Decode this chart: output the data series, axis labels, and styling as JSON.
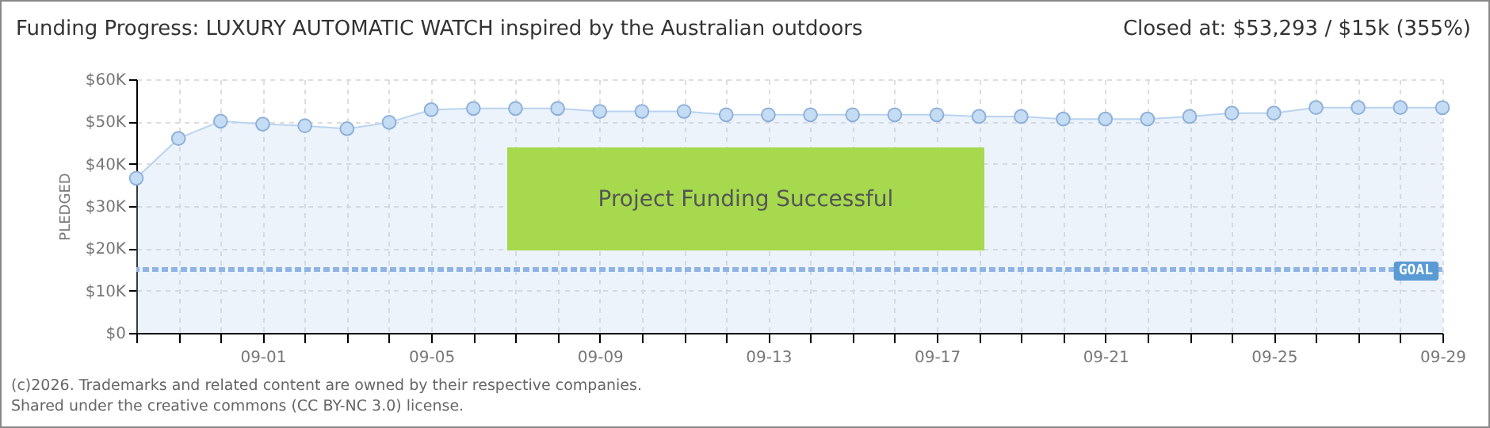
{
  "chart_data": {
    "type": "area",
    "title": "Funding Progress: LUXURY AUTOMATIC WATCH inspired by the Australian outdoors",
    "subtitle": "Closed at:  $53,293 / $15k (355%)",
    "ylabel": "PLEDGED",
    "x": [
      "--08-29",
      "--08-30",
      "--08-31",
      "--09-01",
      "--09-02",
      "--09-03",
      "--09-04",
      "--09-05",
      "--09-06",
      "--09-07",
      "--09-08",
      "--09-09",
      "--09-10",
      "--09-11",
      "--09-12",
      "--09-13",
      "--09-14",
      "--09-15",
      "--09-16",
      "--09-17",
      "--09-18",
      "--09-19",
      "--09-20",
      "--09-21",
      "--09-22",
      "--09-23",
      "--09-24",
      "--09-25",
      "--09-26",
      "--09-27",
      "--09-28",
      "--09-29"
    ],
    "series": [
      {
        "color": "#b9d3f0",
        "values": [
          36600,
          46000,
          50100,
          49400,
          49000,
          48300,
          49800,
          52800,
          53100,
          53100,
          53100,
          52400,
          52400,
          52400,
          51600,
          51600,
          51600,
          51600,
          51600,
          51600,
          51200,
          51200,
          50600,
          50600,
          50600,
          51200,
          52000,
          52000,
          53300,
          53300,
          53300,
          53293
        ]
      }
    ],
    "xlim": [
      "--08-29",
      "--09-29"
    ],
    "xticks": [
      {
        "value": "--08-29",
        "label": null
      },
      {
        "value": "--08-30",
        "label": null
      },
      {
        "value": "--08-31",
        "label": null
      },
      {
        "value": "--09-01",
        "label": "09-01"
      },
      {
        "value": "--09-02",
        "label": null
      },
      {
        "value": "--09-03",
        "label": null
      },
      {
        "value": "--09-04",
        "label": null
      },
      {
        "value": "--09-05",
        "label": "09-05"
      },
      {
        "value": "--09-06",
        "label": null
      },
      {
        "value": "--09-07",
        "label": null
      },
      {
        "value": "--09-08",
        "label": null
      },
      {
        "value": "--09-09",
        "label": "09-09"
      },
      {
        "value": "--09-10",
        "label": null
      },
      {
        "value": "--09-11",
        "label": null
      },
      {
        "value": "--09-12",
        "label": null
      },
      {
        "value": "--09-13",
        "label": "09-13"
      },
      {
        "value": "--09-14",
        "label": null
      },
      {
        "value": "--09-15",
        "label": null
      },
      {
        "value": "--09-16",
        "label": null
      },
      {
        "value": "--09-17",
        "label": "09-17"
      },
      {
        "value": "--09-18",
        "label": null
      },
      {
        "value": "--09-19",
        "label": null
      },
      {
        "value": "--09-20",
        "label": null
      },
      {
        "value": "--09-21",
        "label": "09-21"
      },
      {
        "value": "--09-22",
        "label": null
      },
      {
        "value": "--09-23",
        "label": null
      },
      {
        "value": "--09-24",
        "label": null
      },
      {
        "value": "--09-25",
        "label": "09-25"
      },
      {
        "value": "--09-26",
        "label": null
      },
      {
        "value": "--09-27",
        "label": null
      },
      {
        "value": "--09-28",
        "label": null
      },
      {
        "value": "--09-29",
        "label": "09-29"
      }
    ],
    "ylim": [
      0,
      60000
    ],
    "yticks": [
      {
        "value": 0,
        "label": "$0"
      },
      {
        "value": 10000,
        "label": "$10K"
      },
      {
        "value": 20000,
        "label": "$20K"
      },
      {
        "value": 30000,
        "label": "$30K"
      },
      {
        "value": 40000,
        "label": "$40K"
      },
      {
        "value": 50000,
        "label": "$50K"
      },
      {
        "value": 60000,
        "label": "$60K"
      }
    ],
    "ref_lines": [
      {
        "axis": "y",
        "value": 15000,
        "label": "GOAL",
        "color": "#8fb4e3",
        "line_style": "dashed"
      }
    ],
    "grid": true,
    "marker": "circle",
    "annotations": [
      "Project Funding Successful",
      "(c)2026. Trademarks and related content are owned by their respective companies.",
      "Shared under the creative commons (CC BY-NC 3.0) license."
    ]
  }
}
